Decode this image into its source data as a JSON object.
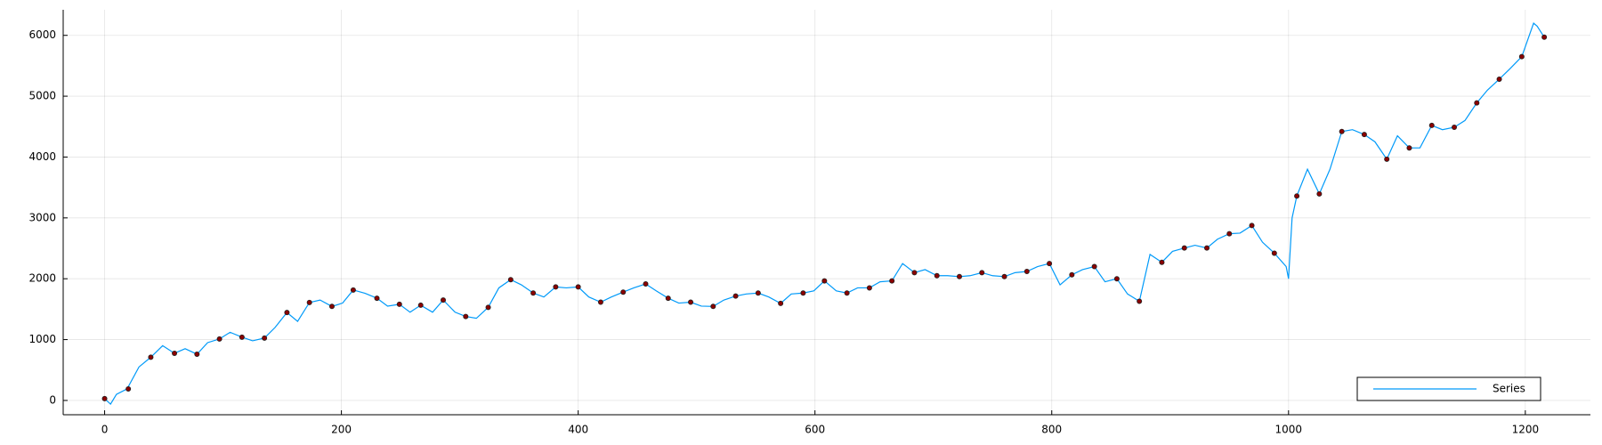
{
  "chart_data": {
    "type": "line",
    "xlim": [
      -35,
      1255
    ],
    "ylim": [
      -235,
      6420
    ],
    "xticks": [
      0,
      200,
      400,
      600,
      800,
      1000,
      1200
    ],
    "yticks": [
      0,
      1000,
      2000,
      3000,
      4000,
      5000,
      6000
    ],
    "grid": true,
    "legend": "lower right",
    "series": [
      {
        "name": "Series",
        "color": "#009af9",
        "style": "line",
        "x": [
          0,
          5,
          10,
          19,
          29,
          39,
          49,
          59,
          68,
          78,
          87,
          97,
          106,
          116,
          125,
          135,
          144,
          154,
          163,
          173,
          182,
          192,
          201,
          210,
          220,
          230,
          239,
          249,
          258,
          267,
          277,
          286,
          296,
          305,
          314,
          324,
          333,
          343,
          352,
          362,
          371,
          381,
          390,
          400,
          409,
          419,
          428,
          438,
          447,
          457,
          466,
          476,
          485,
          495,
          504,
          514,
          523,
          533,
          542,
          552,
          561,
          571,
          580,
          590,
          599,
          608,
          618,
          627,
          636,
          646,
          655,
          665,
          674,
          684,
          693,
          703,
          712,
          722,
          731,
          741,
          750,
          760,
          769,
          779,
          788,
          798,
          807,
          817,
          826,
          836,
          845,
          855,
          864,
          874,
          883,
          893,
          902,
          912,
          921,
          931,
          940,
          950,
          959,
          969,
          978,
          988,
          998,
          1000,
          1003,
          1007,
          1016,
          1026,
          1035,
          1045,
          1054,
          1064,
          1073,
          1083,
          1092,
          1102,
          1111,
          1121,
          1130,
          1140,
          1149,
          1159,
          1168,
          1178,
          1187,
          1197,
          1207,
          1210,
          1216
        ],
        "values": [
          30,
          -60,
          100,
          190,
          550,
          710,
          900,
          775,
          850,
          760,
          950,
          1010,
          1120,
          1040,
          980,
          1025,
          1200,
          1445,
          1300,
          1610,
          1650,
          1545,
          1600,
          1815,
          1760,
          1680,
          1550,
          1580,
          1450,
          1565,
          1450,
          1650,
          1450,
          1380,
          1350,
          1530,
          1850,
          1985,
          1900,
          1765,
          1700,
          1865,
          1850,
          1865,
          1700,
          1615,
          1700,
          1780,
          1850,
          1915,
          1800,
          1680,
          1600,
          1615,
          1550,
          1545,
          1650,
          1715,
          1750,
          1765,
          1700,
          1595,
          1750,
          1765,
          1800,
          1965,
          1800,
          1765,
          1850,
          1850,
          1950,
          1965,
          2250,
          2100,
          2150,
          2050,
          2050,
          2035,
          2050,
          2100,
          2050,
          2035,
          2100,
          2120,
          2200,
          2250,
          1900,
          2065,
          2150,
          2200,
          1950,
          2000,
          1750,
          1630,
          2400,
          2270,
          2450,
          2505,
          2550,
          2505,
          2650,
          2740,
          2750,
          2875,
          2600,
          2420,
          2200,
          2000,
          3000,
          3360,
          3800,
          3395,
          3800,
          4420,
          4450,
          4370,
          4250,
          3965,
          4350,
          4150,
          4150,
          4520,
          4450,
          4490,
          4600,
          4890,
          5100,
          5280,
          5450,
          5650,
          6200,
          6150,
          5970
        ]
      },
      {
        "color": "#8b0000",
        "style": "markers",
        "x": [
          0,
          20,
          39,
          59,
          78,
          97,
          116,
          135,
          154,
          173,
          192,
          210,
          230,
          249,
          267,
          286,
          305,
          324,
          343,
          362,
          381,
          400,
          419,
          438,
          457,
          476,
          495,
          514,
          533,
          552,
          571,
          590,
          608,
          627,
          646,
          665,
          684,
          703,
          722,
          741,
          760,
          779,
          798,
          817,
          836,
          855,
          874,
          893,
          912,
          931,
          950,
          969,
          988,
          1007,
          1026,
          1045,
          1064,
          1083,
          1102,
          1121,
          1140,
          1159,
          1178,
          1197,
          1216
        ],
        "values": [
          30,
          190,
          710,
          775,
          760,
          1010,
          1040,
          1025,
          1445,
          1610,
          1545,
          1815,
          1680,
          1580,
          1565,
          1650,
          1380,
          1530,
          1985,
          1765,
          1865,
          1865,
          1615,
          1780,
          1915,
          1680,
          1615,
          1545,
          1715,
          1765,
          1595,
          1765,
          1965,
          1765,
          1850,
          1965,
          2100,
          2050,
          2035,
          2100,
          2035,
          2120,
          2250,
          2065,
          2200,
          2000,
          1630,
          2270,
          2505,
          2505,
          2740,
          2875,
          2420,
          3360,
          3395,
          4420,
          4370,
          3965,
          4150,
          4520,
          4490,
          4890,
          5280,
          5650,
          5970
        ]
      }
    ]
  }
}
